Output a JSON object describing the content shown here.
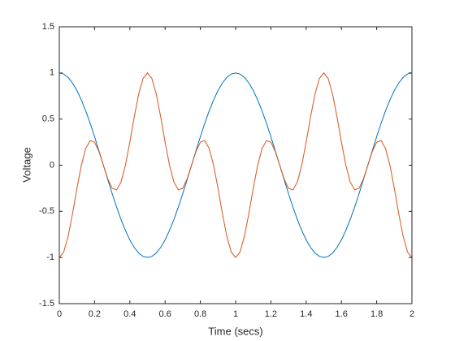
{
  "chart_data": {
    "type": "line",
    "xlabel": "Time (secs)",
    "ylabel": "Voltage",
    "x": [
      0,
      0.025,
      0.05,
      0.075,
      0.1,
      0.125,
      0.15,
      0.175,
      0.2,
      0.225,
      0.25,
      0.275,
      0.3,
      0.325,
      0.35,
      0.375,
      0.4,
      0.425,
      0.45,
      0.475,
      0.5,
      0.525,
      0.55,
      0.575,
      0.6,
      0.625,
      0.65,
      0.675,
      0.7,
      0.725,
      0.75,
      0.775,
      0.8,
      0.825,
      0.85,
      0.875,
      0.9,
      0.925,
      0.95,
      0.975,
      1,
      1.025,
      1.05,
      1.075,
      1.1,
      1.125,
      1.15,
      1.175,
      1.2,
      1.225,
      1.25,
      1.275,
      1.3,
      1.325,
      1.35,
      1.375,
      1.4,
      1.425,
      1.45,
      1.475,
      1.5,
      1.525,
      1.55,
      1.575,
      1.6,
      1.625,
      1.65,
      1.675,
      1.7,
      1.725,
      1.75,
      1.775,
      1.8,
      1.825,
      1.85,
      1.875,
      1.9,
      1.925,
      1.95,
      1.975,
      2
    ],
    "series": [
      {
        "color": "#0072bd",
        "values": [
          1,
          0.988,
          0.951,
          0.891,
          0.809,
          0.707,
          0.588,
          0.454,
          0.309,
          0.156,
          0,
          -0.156,
          -0.309,
          -0.454,
          -0.588,
          -0.707,
          -0.809,
          -0.891,
          -0.951,
          -0.988,
          -1,
          -0.988,
          -0.951,
          -0.891,
          -0.809,
          -0.707,
          -0.588,
          -0.454,
          -0.309,
          -0.156,
          0,
          0.156,
          0.309,
          0.454,
          0.588,
          0.707,
          0.809,
          0.891,
          0.951,
          0.988,
          1,
          0.988,
          0.951,
          0.891,
          0.809,
          0.707,
          0.588,
          0.454,
          0.309,
          0.156,
          0,
          -0.156,
          -0.309,
          -0.454,
          -0.588,
          -0.707,
          -0.809,
          -0.891,
          -0.951,
          -0.988,
          -1,
          -0.988,
          -0.951,
          -0.891,
          -0.809,
          -0.707,
          -0.588,
          -0.454,
          -0.309,
          -0.156,
          0,
          0.156,
          0.309,
          0.454,
          0.588,
          0.707,
          0.809,
          0.891,
          0.951,
          0.988,
          1
        ]
      },
      {
        "color": "#d95319",
        "values": [
          -1,
          -0.94,
          -0.769,
          -0.524,
          -0.25,
          0,
          0.182,
          0.267,
          0.25,
          0.148,
          0,
          -0.148,
          -0.25,
          -0.267,
          -0.182,
          0,
          0.25,
          0.524,
          0.769,
          0.94,
          1,
          0.94,
          0.769,
          0.524,
          0.25,
          0,
          -0.182,
          -0.267,
          -0.25,
          -0.148,
          0,
          0.148,
          0.25,
          0.267,
          0.182,
          0,
          -0.25,
          -0.524,
          -0.769,
          -0.94,
          -1,
          -0.94,
          -0.769,
          -0.524,
          -0.25,
          0,
          0.182,
          0.267,
          0.25,
          0.148,
          0,
          -0.148,
          -0.25,
          -0.267,
          -0.182,
          0,
          0.25,
          0.524,
          0.769,
          0.94,
          1,
          0.94,
          0.769,
          0.524,
          0.25,
          0,
          -0.182,
          -0.267,
          -0.25,
          -0.148,
          0,
          0.148,
          0.25,
          0.267,
          0.182,
          0,
          -0.25,
          -0.524,
          -0.769,
          -0.94,
          -1
        ]
      }
    ],
    "xlim": [
      0,
      2
    ],
    "xticks": [
      0,
      0.2,
      0.4,
      0.6,
      0.8,
      1,
      1.2,
      1.4,
      1.6,
      1.8,
      2
    ],
    "ylim": [
      -1.5,
      1.5
    ],
    "yticks": [
      -1.5,
      -1,
      -0.5,
      0,
      0.5,
      1,
      1.5
    ],
    "grid": false
  }
}
